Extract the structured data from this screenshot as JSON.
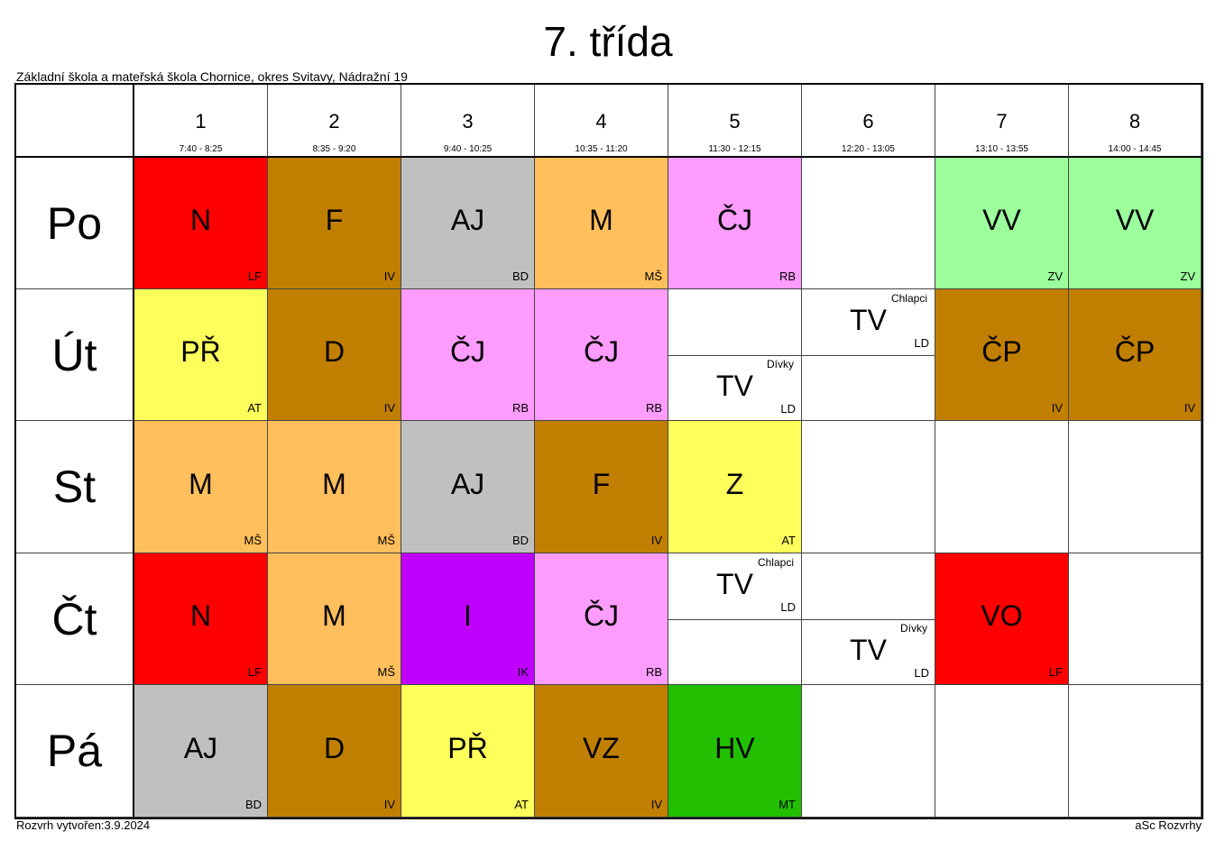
{
  "title": "7. třída",
  "school": "Základní škola a mateřská škola Chornice, okres Svitavy, Nádražní 19",
  "footer": {
    "created": "Rozvrh vytvořen:3.9.2024",
    "brand": "aSc Rozvrhy"
  },
  "periods": [
    {
      "num": "1",
      "time": "7:40 - 8:25"
    },
    {
      "num": "2",
      "time": "8:35 - 9:20"
    },
    {
      "num": "3",
      "time": "9:40 - 10:25"
    },
    {
      "num": "4",
      "time": "10:35 - 11:20"
    },
    {
      "num": "5",
      "time": "11:30 - 12:15"
    },
    {
      "num": "6",
      "time": "12:20 - 13:05"
    },
    {
      "num": "7",
      "time": "13:10 - 13:55"
    },
    {
      "num": "8",
      "time": "14:00 - 14:45"
    }
  ],
  "colors": {
    "N": "#ff0000",
    "F": "#c17f00",
    "D": "#c17f00",
    "VZ": "#c17f00",
    "CP": "#c17f00",
    "AJ": "#c0c0c0",
    "M": "#ffbf5c",
    "CJ": "#ff9cff",
    "VV": "#9cff9c",
    "PR": "#ffff5c",
    "Z": "#ffff5c",
    "I": "#c000ff",
    "HV": "#22c000",
    "VO": "#ff0000"
  },
  "days": [
    {
      "name": "Po",
      "lessons": [
        {
          "period": 1,
          "subject": "N",
          "teacher": "LF",
          "color": "#ff0000"
        },
        {
          "period": 2,
          "subject": "F",
          "teacher": "IV",
          "color": "#c17f00"
        },
        {
          "period": 3,
          "subject": "AJ",
          "teacher": "BD",
          "color": "#c0c0c0"
        },
        {
          "period": 4,
          "subject": "M",
          "teacher": "MŠ",
          "color": "#ffbf5c"
        },
        {
          "period": 5,
          "subject": "ČJ",
          "teacher": "RB",
          "color": "#ff9cff"
        },
        {
          "period": 7,
          "subject": "VV",
          "teacher": "ZV",
          "color": "#9cff9c"
        },
        {
          "period": 8,
          "subject": "VV",
          "teacher": "ZV",
          "color": "#9cff9c"
        }
      ]
    },
    {
      "name": "Út",
      "lessons": [
        {
          "period": 1,
          "subject": "PŘ",
          "teacher": "AT",
          "color": "#ffff5c"
        },
        {
          "period": 2,
          "subject": "D",
          "teacher": "IV",
          "color": "#c17f00"
        },
        {
          "period": 3,
          "subject": "ČJ",
          "teacher": "RB",
          "color": "#ff9cff"
        },
        {
          "period": 4,
          "subject": "ČJ",
          "teacher": "RB",
          "color": "#ff9cff"
        },
        {
          "period": 5,
          "subject": "TV",
          "teacher": "LD",
          "group": "Dívky",
          "half": "bottom"
        },
        {
          "period": 6,
          "subject": "TV",
          "teacher": "LD",
          "group": "Chlapci",
          "half": "top"
        },
        {
          "period": 7,
          "subject": "ČP",
          "teacher": "IV",
          "color": "#c17f00"
        },
        {
          "period": 8,
          "subject": "ČP",
          "teacher": "IV",
          "color": "#c17f00"
        }
      ]
    },
    {
      "name": "St",
      "lessons": [
        {
          "period": 1,
          "subject": "M",
          "teacher": "MŠ",
          "color": "#ffbf5c"
        },
        {
          "period": 2,
          "subject": "M",
          "teacher": "MŠ",
          "color": "#ffbf5c"
        },
        {
          "period": 3,
          "subject": "AJ",
          "teacher": "BD",
          "color": "#c0c0c0"
        },
        {
          "period": 4,
          "subject": "F",
          "teacher": "IV",
          "color": "#c17f00"
        },
        {
          "period": 5,
          "subject": "Z",
          "teacher": "AT",
          "color": "#ffff5c"
        }
      ]
    },
    {
      "name": "Čt",
      "lessons": [
        {
          "period": 1,
          "subject": "N",
          "teacher": "LF",
          "color": "#ff0000"
        },
        {
          "period": 2,
          "subject": "M",
          "teacher": "MŠ",
          "color": "#ffbf5c"
        },
        {
          "period": 3,
          "subject": "I",
          "teacher": "IK",
          "color": "#c000ff"
        },
        {
          "period": 4,
          "subject": "ČJ",
          "teacher": "RB",
          "color": "#ff9cff"
        },
        {
          "period": 5,
          "subject": "TV",
          "teacher": "LD",
          "group": "Chlapci",
          "half": "top"
        },
        {
          "period": 6,
          "subject": "TV",
          "teacher": "LD",
          "group": "Dívky",
          "half": "bottom"
        },
        {
          "period": 7,
          "subject": "VO",
          "teacher": "LF",
          "color": "#ff0000"
        }
      ]
    },
    {
      "name": "Pá",
      "lessons": [
        {
          "period": 1,
          "subject": "AJ",
          "teacher": "BD",
          "color": "#c0c0c0"
        },
        {
          "period": 2,
          "subject": "D",
          "teacher": "IV",
          "color": "#c17f00"
        },
        {
          "period": 3,
          "subject": "PŘ",
          "teacher": "AT",
          "color": "#ffff5c"
        },
        {
          "period": 4,
          "subject": "VZ",
          "teacher": "IV",
          "color": "#c17f00"
        },
        {
          "period": 5,
          "subject": "HV",
          "teacher": "MT",
          "color": "#22c000"
        }
      ]
    }
  ]
}
